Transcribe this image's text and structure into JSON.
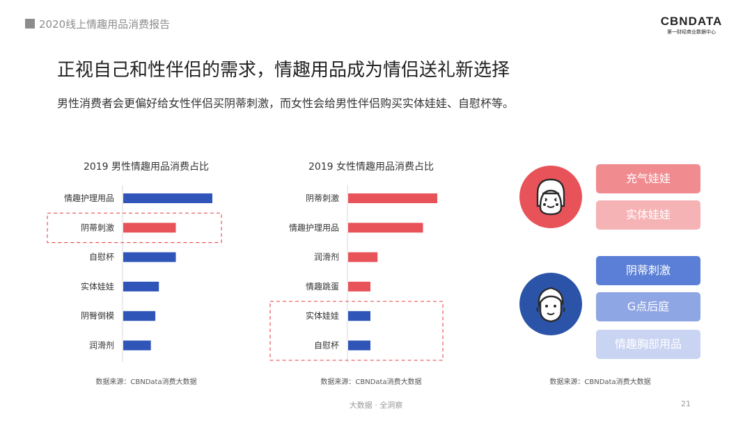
{
  "header": {
    "report_title": "2020线上情趣用品消费报告"
  },
  "logo": {
    "name": "CBNDATA",
    "tagline": "第一财经商业数据中心"
  },
  "title": "正视自己和性伴侣的需求，情趣用品成为情侣送礼新选择",
  "subtitle": "男性消费者会更偏好给女性伴侣买阴蒂刺激，而女性会给男性伴侣购买实体娃娃、自慰杯等。",
  "chart_data": [
    {
      "type": "bar",
      "orientation": "horizontal",
      "title": "2019 男性情趣用品消费占比",
      "categories": [
        "情趣护理用品",
        "阴蒂刺激",
        "自慰杯",
        "实体娃娃",
        "阴臀倒模",
        "润滑剂"
      ],
      "values": [
        100,
        59,
        59,
        40,
        36,
        31
      ],
      "value_unit": "relative share (unlabeled)",
      "highlighted": [
        "阴蒂刺激"
      ],
      "bar_colors": [
        "#2f55b8",
        "#e8535a",
        "#2f55b8",
        "#2f55b8",
        "#2f55b8",
        "#2f55b8"
      ],
      "source": "数据来源：CBNData消费大数据"
    },
    {
      "type": "bar",
      "orientation": "horizontal",
      "title": "2019 女性情趣用品消费占比",
      "categories": [
        "阴蒂刺激",
        "情趣护理用品",
        "润滑剂",
        "情趣跳蛋",
        "实体娃娃",
        "自慰杯"
      ],
      "values": [
        100,
        84,
        33,
        25,
        25,
        25
      ],
      "value_unit": "relative share (unlabeled)",
      "highlighted": [
        "实体娃娃",
        "自慰杯"
      ],
      "bar_colors": [
        "#e8535a",
        "#e8535a",
        "#e8535a",
        "#e8535a",
        "#2f55b8",
        "#2f55b8"
      ],
      "source": "数据来源：CBNData消费大数据"
    }
  ],
  "right_panel": {
    "female_icon": "woman-face-icon",
    "male_icon": "man-face-icon",
    "female_items": [
      "充气娃娃",
      "实体娃娃"
    ],
    "male_items": [
      "阴蒂刺激",
      "G点后庭",
      "情趣胸部用品"
    ],
    "source": "数据来源：CBNData消费大数据"
  },
  "footer": {
    "text": "大数据 · 全洞察",
    "page": "21"
  },
  "colors": {
    "blue": "#2f55b8",
    "red": "#e8535a",
    "dashed_box": "#e8535a",
    "female_circle": "#e8535a",
    "male_circle": "#2b54a8"
  }
}
